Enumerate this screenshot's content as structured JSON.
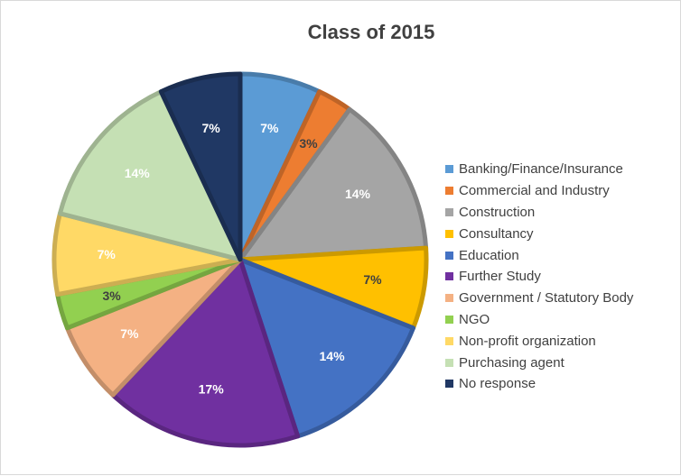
{
  "chart_data": {
    "type": "pie",
    "title": "Class of 2015",
    "legend_position": "right",
    "slices": [
      {
        "label": "Banking/Finance/Insurance",
        "value": 7,
        "display": "7%",
        "color": "#5b9bd5",
        "label_color": "#ffffff"
      },
      {
        "label": "Commercial and Industry",
        "value": 3,
        "display": "3%",
        "color": "#ed7d31",
        "label_color": "#404040"
      },
      {
        "label": "Construction",
        "value": 14,
        "display": "14%",
        "color": "#a5a5a5",
        "label_color": "#ffffff"
      },
      {
        "label": "Consultancy",
        "value": 7,
        "display": "7%",
        "color": "#ffc000",
        "label_color": "#404040"
      },
      {
        "label": "Education",
        "value": 14,
        "display": "14%",
        "color": "#4472c4",
        "label_color": "#ffffff"
      },
      {
        "label": "Further Study",
        "value": 17,
        "display": "17%",
        "color": "#7030a0",
        "label_color": "#ffffff"
      },
      {
        "label": "Government / Statutory Body",
        "value": 7,
        "display": "7%",
        "color": "#f4b183",
        "label_color": "#ffffff"
      },
      {
        "label": "NGO",
        "value": 3,
        "display": "3%",
        "color": "#92d050",
        "label_color": "#404040"
      },
      {
        "label": "Non-profit organization",
        "value": 7,
        "display": "7%",
        "color": "#ffd966",
        "label_color": "#ffffff"
      },
      {
        "label": "Purchasing agent",
        "value": 14,
        "display": "14%",
        "color": "#c5e0b4",
        "label_color": "#ffffff"
      },
      {
        "label": "No response",
        "value": 7,
        "display": "7%",
        "color": "#203864",
        "label_color": "#ffffff"
      }
    ]
  }
}
